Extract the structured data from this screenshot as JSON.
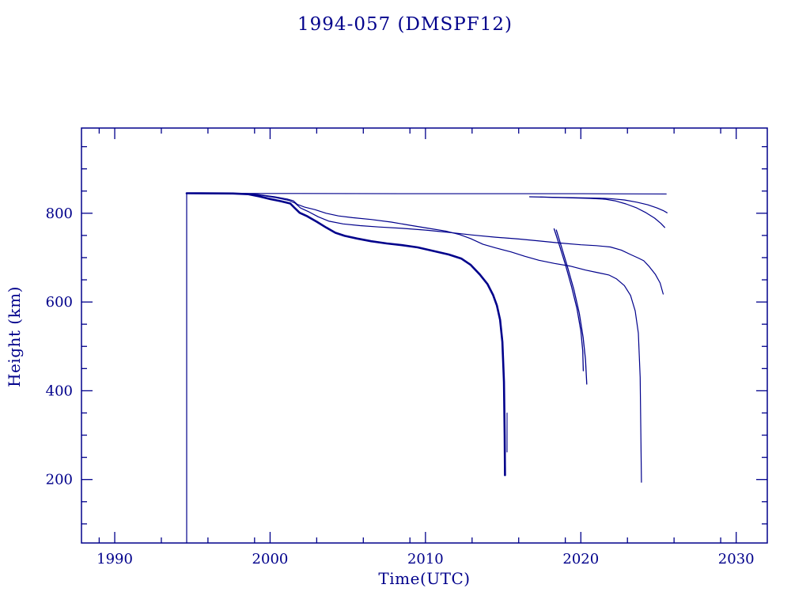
{
  "title": "1994-057 (DMSPF12)",
  "colors": {
    "line": "#00008B",
    "background": "#ffffff"
  },
  "chart_data": {
    "type": "line",
    "title": "1994-057 (DMSPF12)",
    "xlabel": "Time(UTC)",
    "ylabel": "Height (km)",
    "xlim": [
      1987.86,
      2032.0
    ],
    "ylim": [
      57,
      992
    ],
    "grid": false,
    "legend": "none",
    "x_major_ticks": [
      1990,
      2000,
      2010,
      2020,
      2030
    ],
    "x_minor_ticks": [
      1989,
      1993,
      1996,
      1999,
      2003,
      2006,
      2009,
      2013,
      2016,
      2019,
      2023,
      2026,
      2029
    ],
    "y_major_ticks": [
      200,
      400,
      600,
      800
    ],
    "y_minor_ticks": [
      100,
      150,
      250,
      300,
      350,
      450,
      500,
      550,
      650,
      700,
      750,
      850,
      900,
      950
    ],
    "series": [
      {
        "name": "launch-epoch-line",
        "width": 1.2,
        "points": [
          [
            1994.63,
            57
          ],
          [
            1994.63,
            845
          ]
        ]
      },
      {
        "name": "no-decay-reference",
        "width": 1.1,
        "points": [
          [
            1994.63,
            845
          ],
          [
            2000,
            844.5
          ],
          [
            2010,
            844
          ],
          [
            2020,
            844
          ],
          [
            2025.5,
            843.5
          ]
        ]
      },
      {
        "name": "height-history-decay-2015",
        "width": 2.6,
        "points": [
          [
            1994.63,
            845
          ],
          [
            1997.6,
            844.5
          ],
          [
            1998.6,
            843
          ],
          [
            1999.3,
            838
          ],
          [
            2000.0,
            832
          ],
          [
            2000.7,
            827
          ],
          [
            2001.3,
            822
          ],
          [
            2001.55,
            813
          ],
          [
            2001.9,
            801
          ],
          [
            2002.4,
            793
          ],
          [
            2003.0,
            781
          ],
          [
            2003.6,
            768
          ],
          [
            2004.2,
            756
          ],
          [
            2004.8,
            749
          ],
          [
            2005.6,
            743
          ],
          [
            2006.5,
            737
          ],
          [
            2007.5,
            732
          ],
          [
            2008.5,
            728
          ],
          [
            2009.5,
            723
          ],
          [
            2010.5,
            715
          ],
          [
            2011.5,
            707
          ],
          [
            2012.3,
            698
          ],
          [
            2012.9,
            684
          ],
          [
            2013.5,
            662
          ],
          [
            2014.0,
            640
          ],
          [
            2014.35,
            616
          ],
          [
            2014.6,
            592
          ],
          [
            2014.8,
            560
          ],
          [
            2014.95,
            510
          ],
          [
            2015.05,
            420
          ],
          [
            2015.1,
            300
          ],
          [
            2015.12,
            210
          ]
        ]
      },
      {
        "name": "decay-2015-second-strand",
        "width": 1.1,
        "points": [
          [
            2015.25,
            350
          ],
          [
            2015.25,
            262
          ]
        ]
      },
      {
        "name": "prediction-decay-2023-9",
        "width": 1.2,
        "points": [
          [
            1994.63,
            845
          ],
          [
            1998.8,
            844
          ],
          [
            1999.5,
            841
          ],
          [
            2000.3,
            837
          ],
          [
            2001.1,
            832
          ],
          [
            2001.5,
            828
          ],
          [
            2001.75,
            820
          ],
          [
            2002.2,
            814
          ],
          [
            2002.9,
            808
          ],
          [
            2003.6,
            800
          ],
          [
            2004.4,
            794
          ],
          [
            2005.3,
            790
          ],
          [
            2006.5,
            786
          ],
          [
            2007.8,
            780
          ],
          [
            2009.0,
            773
          ],
          [
            2010.2,
            766
          ],
          [
            2011.3,
            760
          ],
          [
            2012.2,
            752
          ],
          [
            2012.9,
            743
          ],
          [
            2013.7,
            730
          ],
          [
            2014.5,
            722
          ],
          [
            2015.5,
            713
          ],
          [
            2016.4,
            703
          ],
          [
            2017.3,
            694
          ],
          [
            2018.3,
            687
          ],
          [
            2019.3,
            681
          ],
          [
            2020.3,
            672
          ],
          [
            2021.1,
            666
          ],
          [
            2021.8,
            661
          ],
          [
            2022.3,
            652
          ],
          [
            2022.8,
            637
          ],
          [
            2023.2,
            615
          ],
          [
            2023.5,
            580
          ],
          [
            2023.7,
            530
          ],
          [
            2023.82,
            430
          ],
          [
            2023.9,
            194
          ]
        ]
      },
      {
        "name": "prediction-ends-2025-620km",
        "width": 1.2,
        "points": [
          [
            1994.63,
            845
          ],
          [
            1998.7,
            843
          ],
          [
            1999.5,
            840
          ],
          [
            2000.4,
            835
          ],
          [
            2001.2,
            829
          ],
          [
            2001.6,
            823
          ],
          [
            2001.95,
            812
          ],
          [
            2002.5,
            803
          ],
          [
            2003.1,
            792
          ],
          [
            2003.8,
            782
          ],
          [
            2004.7,
            776
          ],
          [
            2005.8,
            772
          ],
          [
            2007.0,
            769
          ],
          [
            2008.5,
            766
          ],
          [
            2010.0,
            762
          ],
          [
            2011.5,
            757
          ],
          [
            2013.0,
            751
          ],
          [
            2014.5,
            746
          ],
          [
            2016.0,
            742
          ],
          [
            2017.2,
            738
          ],
          [
            2018.6,
            733
          ],
          [
            2020.0,
            729
          ],
          [
            2021.0,
            727
          ],
          [
            2021.9,
            724
          ],
          [
            2022.6,
            717
          ],
          [
            2023.2,
            707
          ],
          [
            2023.7,
            699
          ],
          [
            2024.05,
            693
          ],
          [
            2024.4,
            680
          ],
          [
            2024.8,
            662
          ],
          [
            2025.1,
            643
          ],
          [
            2025.3,
            618
          ]
        ]
      },
      {
        "name": "steep-prediction-2020-a",
        "width": 1.3,
        "points": [
          [
            2018.28,
            765
          ],
          [
            2018.6,
            730
          ],
          [
            2019.0,
            685
          ],
          [
            2019.4,
            635
          ],
          [
            2019.75,
            585
          ],
          [
            2020.0,
            535
          ],
          [
            2020.12,
            490
          ],
          [
            2020.16,
            445
          ]
        ]
      },
      {
        "name": "steep-prediction-2020-b",
        "width": 1.3,
        "points": [
          [
            2018.42,
            762
          ],
          [
            2018.75,
            725
          ],
          [
            2019.15,
            678
          ],
          [
            2019.55,
            628
          ],
          [
            2019.9,
            575
          ],
          [
            2020.15,
            520
          ],
          [
            2020.3,
            470
          ],
          [
            2020.38,
            415
          ]
        ]
      },
      {
        "name": "high-prediction-ends-800km",
        "width": 1.2,
        "points": [
          [
            2016.7,
            837
          ],
          [
            2018.2,
            836
          ],
          [
            2019.8,
            835
          ],
          [
            2021.2,
            834
          ],
          [
            2021.9,
            833
          ],
          [
            2022.8,
            830
          ],
          [
            2023.6,
            825
          ],
          [
            2024.3,
            819
          ],
          [
            2024.9,
            812
          ],
          [
            2025.3,
            806
          ],
          [
            2025.55,
            801
          ]
        ]
      },
      {
        "name": "high-prediction-ends-768km",
        "width": 1.2,
        "points": [
          [
            2017.4,
            836.5
          ],
          [
            2019.0,
            835
          ],
          [
            2020.6,
            833.5
          ],
          [
            2021.6,
            831.5
          ],
          [
            2022.2,
            828
          ],
          [
            2022.9,
            821
          ],
          [
            2023.6,
            812
          ],
          [
            2024.2,
            801
          ],
          [
            2024.75,
            789
          ],
          [
            2025.15,
            777
          ],
          [
            2025.4,
            768
          ]
        ]
      }
    ]
  }
}
